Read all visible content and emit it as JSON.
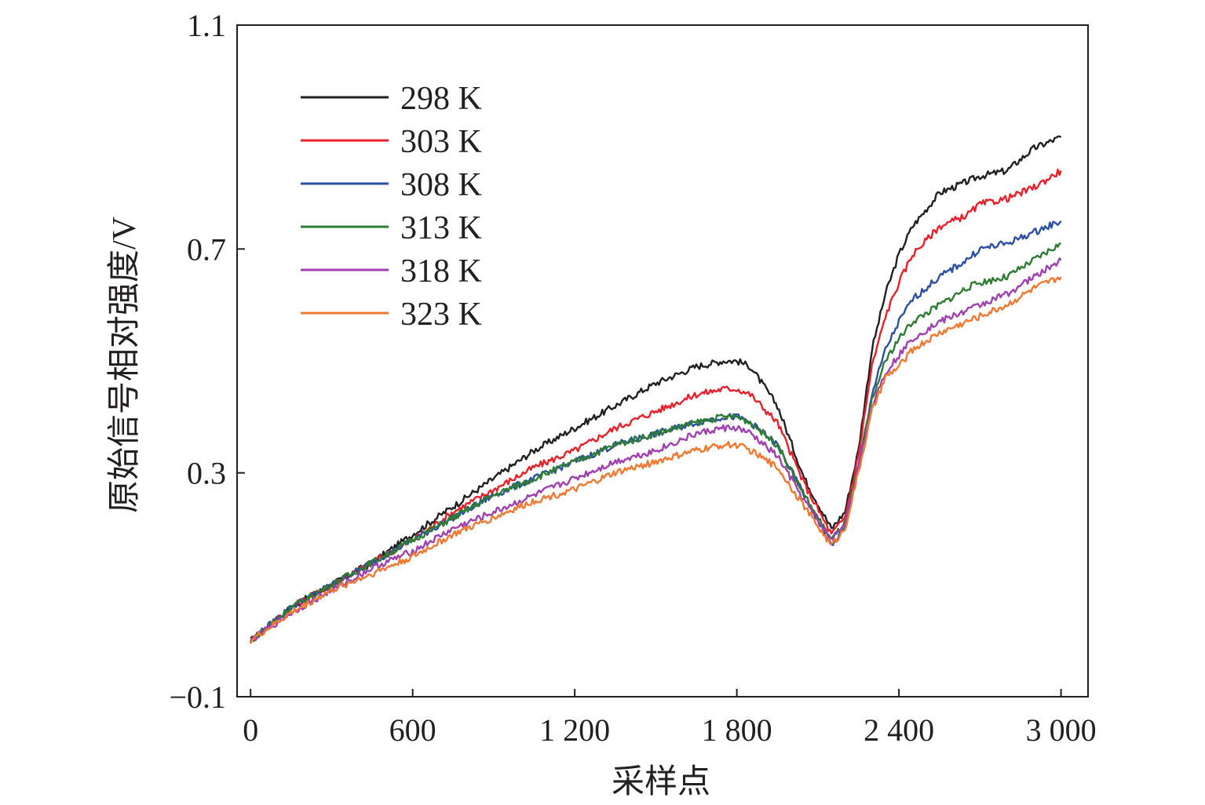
{
  "chart_data": {
    "type": "line",
    "title": "",
    "xlabel": "采样点",
    "ylabel": "原始信号相对强度/V",
    "xlim": [
      -50,
      3100
    ],
    "ylim": [
      -0.1,
      1.1
    ],
    "x_ticks": [
      0,
      600,
      1200,
      1800,
      2400,
      3000
    ],
    "x_tick_labels": [
      "0",
      "600",
      "1 200",
      "1 800",
      "2 400",
      "3 000"
    ],
    "y_ticks": [
      -0.1,
      0.3,
      0.7,
      1.1
    ],
    "y_tick_labels": [
      "−0.1",
      "0.3",
      "0.7",
      "1.1"
    ],
    "grid": false,
    "legend_position": "top-left",
    "x": [
      0,
      150,
      300,
      450,
      600,
      750,
      900,
      1050,
      1200,
      1350,
      1500,
      1650,
      1750,
      1800,
      1850,
      1950,
      2050,
      2150,
      2200,
      2250,
      2300,
      2350,
      2400,
      2450,
      2550,
      2650,
      2700,
      2800,
      2900,
      3000
    ],
    "series": [
      {
        "name": "298 K",
        "color": "#231f20",
        "values": [
          0.0,
          0.06,
          0.1,
          0.14,
          0.19,
          0.24,
          0.29,
          0.34,
          0.38,
          0.42,
          0.46,
          0.49,
          0.5,
          0.5,
          0.49,
          0.42,
          0.29,
          0.2,
          0.23,
          0.34,
          0.52,
          0.62,
          0.69,
          0.74,
          0.8,
          0.82,
          0.83,
          0.84,
          0.88,
          0.9
        ]
      },
      {
        "name": "303 K",
        "color": "#e8202a",
        "values": [
          0.0,
          0.06,
          0.1,
          0.14,
          0.18,
          0.23,
          0.27,
          0.31,
          0.34,
          0.38,
          0.41,
          0.44,
          0.45,
          0.45,
          0.44,
          0.39,
          0.28,
          0.19,
          0.22,
          0.33,
          0.49,
          0.58,
          0.64,
          0.69,
          0.74,
          0.76,
          0.78,
          0.79,
          0.81,
          0.84
        ]
      },
      {
        "name": "308 K",
        "color": "#2b4fa2",
        "values": [
          0.0,
          0.06,
          0.1,
          0.14,
          0.18,
          0.22,
          0.26,
          0.29,
          0.32,
          0.35,
          0.37,
          0.39,
          0.4,
          0.4,
          0.39,
          0.35,
          0.26,
          0.17,
          0.2,
          0.31,
          0.44,
          0.52,
          0.57,
          0.61,
          0.65,
          0.68,
          0.7,
          0.71,
          0.73,
          0.75
        ]
      },
      {
        "name": "313 K",
        "color": "#2e7d32",
        "values": [
          0.0,
          0.06,
          0.1,
          0.14,
          0.18,
          0.22,
          0.26,
          0.29,
          0.32,
          0.35,
          0.37,
          0.39,
          0.4,
          0.4,
          0.39,
          0.35,
          0.26,
          0.18,
          0.21,
          0.31,
          0.43,
          0.5,
          0.54,
          0.57,
          0.6,
          0.63,
          0.64,
          0.65,
          0.68,
          0.71
        ]
      },
      {
        "name": "318 K",
        "color": "#a040b0",
        "values": [
          0.0,
          0.05,
          0.09,
          0.13,
          0.16,
          0.2,
          0.23,
          0.26,
          0.29,
          0.32,
          0.34,
          0.37,
          0.38,
          0.38,
          0.37,
          0.33,
          0.25,
          0.18,
          0.21,
          0.31,
          0.42,
          0.48,
          0.51,
          0.54,
          0.57,
          0.59,
          0.6,
          0.62,
          0.65,
          0.68
        ]
      },
      {
        "name": "323 K",
        "color": "#f07830",
        "values": [
          0.0,
          0.05,
          0.09,
          0.12,
          0.15,
          0.19,
          0.22,
          0.25,
          0.27,
          0.3,
          0.32,
          0.34,
          0.35,
          0.35,
          0.34,
          0.31,
          0.24,
          0.17,
          0.2,
          0.3,
          0.41,
          0.47,
          0.49,
          0.52,
          0.55,
          0.57,
          0.58,
          0.6,
          0.63,
          0.65
        ]
      }
    ]
  }
}
